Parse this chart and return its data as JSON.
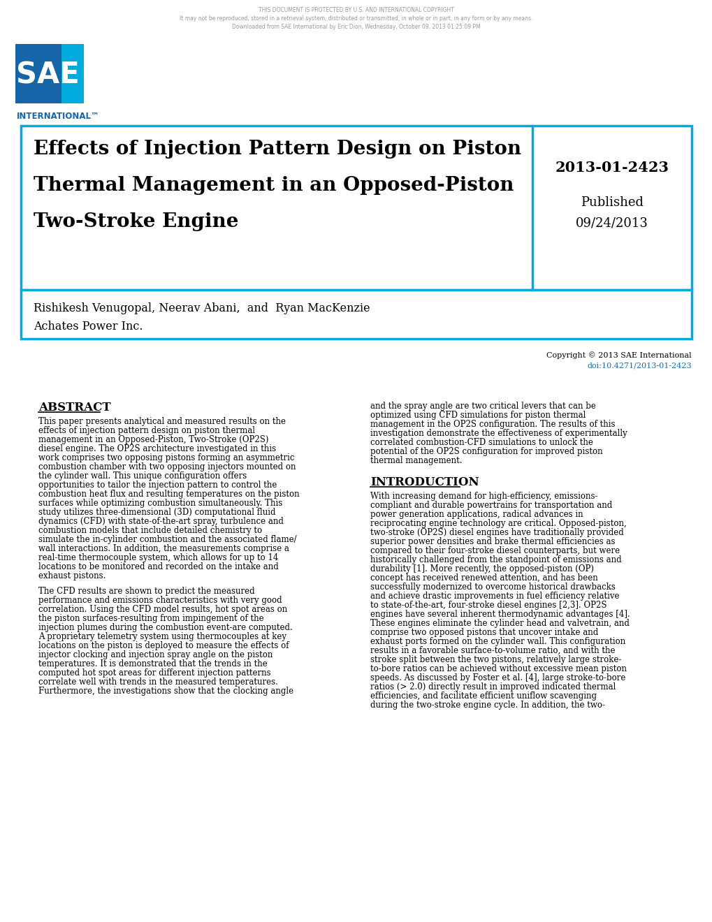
{
  "header_copyright_line1": "THIS DOCUMENT IS PROTECTED BY U.S. AND INTERNATIONAL COPYRIGHT",
  "header_copyright_line2": "It may not be reproduced, stored in a retrieval system, distributed or transmitted, in whole or in part, in any form or by any means.",
  "header_copyright_line3": "Downloaded from SAE International by Eric Dion, Wednesday, October 09, 2013 01:25:09 PM",
  "sae_international_text": "INTERNATIONAL™",
  "title_box_title_line1": "Effects of Injection Pattern Design on Piston",
  "title_box_title_line2": "Thermal Management in an Opposed-Piston",
  "title_box_title_line3": "Two-Stroke Engine",
  "paper_number": "2013-01-2423",
  "published_label": "Published",
  "published_date": "09/24/2013",
  "authors_line1": "Rishikesh Venugopal, Neerav Abani,  and  Ryan MacKenzie",
  "authors_line2": "Achates Power Inc.",
  "copyright_footer": "Copyright © 2013 SAE International",
  "doi_text": "doi:10.4271/2013-01-2423",
  "abstract_heading": "ABSTRACT",
  "abstract_para1": "This paper presents analytical and measured results on the\neffects of injection pattern design on piston thermal\nmanagement in an Opposed-Piston, Two-Stroke (OP2S)\ndiesel engine. The OP2S architecture investigated in this\nwork comprises two opposing pistons forming an asymmetric\ncombustion chamber with two opposing injectors mounted on\nthe cylinder wall. This unique configuration offers\nopportunities to tailor the injection pattern to control the\ncombustion heat flux and resulting temperatures on the piston\nsurfaces while optimizing combustion simultaneously. This\nstudy utilizes three-dimensional (3D) computational fluid\ndynamics (CFD) with state-of-the-art spray, turbulence and\ncombustion models that include detailed chemistry to\nsimulate the in-cylinder combustion and the associated flame/\nwall interactions. In addition, the measurements comprise a\nreal-time thermocouple system, which allows for up to 14\nlocations to be monitored and recorded on the intake and\nexhaust pistons.",
  "abstract_para2": "The CFD results are shown to predict the measured\nperformance and emissions characteristics with very good\ncorrelation. Using the CFD model results, hot spot areas on\nthe piston surfaces-resulting from impingement of the\ninjection plumes during the combustion event-are computed.\nA proprietary telemetry system using thermocouples at key\nlocations on the piston is deployed to measure the effects of\ninjector clocking and injection spray angle on the piston\ntemperatures. It is demonstrated that the trends in the\ncomputed hot spot areas for different injection patterns\ncorrelate well with trends in the measured temperatures.\nFurthermore, the investigations show that the clocking angle",
  "right_col_para1": "and the spray angle are two critical levers that can be\noptimized using CFD simulations for piston thermal\nmanagement in the OP2S configuration. The results of this\ninvestigation demonstrate the effectiveness of experimentally\ncorrelated combustion-CFD simulations to unlock the\npotential of the OP2S configuration for improved piston\nthermal management.",
  "intro_heading": "INTRODUCTION",
  "intro_para1": "With increasing demand for high-efficiency, emissions-\ncompliant and durable powertrains for transportation and\npower generation applications, radical advances in\nreciprocating engine technology are critical. Opposed-piston,\ntwo-stroke (OP2S) diesel engines have traditionally provided\nsuperior power densities and brake thermal efficiencies as\ncompared to their four-stroke diesel counterparts, but were\nhistorically challenged from the standpoint of emissions and\ndurability [1]. More recently, the opposed-piston (OP)\nconcept has received renewed attention, and has been\nsuccessfully modernized to overcome historical drawbacks\nand achieve drastic improvements in fuel efficiency relative\nto state-of-the-art, four-stroke diesel engines [2,3]. OP2S\nengines have several inherent thermodynamic advantages [4].\nThese engines eliminate the cylinder head and valvetrain, and\ncomprise two opposed pistons that uncover intake and\nexhaust ports formed on the cylinder wall. This configuration\nresults in a favorable surface-to-volume ratio, and with the\nstroke split between the two pistons, relatively large stroke-\nto-bore ratios can be achieved without excessive mean piston\nspeeds. As discussed by Foster et al. [4], large stroke-to-bore\nratios (> 2.0) directly result in improved indicated thermal\nefficiencies, and facilitate efficient uniflow scavenging\nduring the two-stroke engine cycle. In addition, the two-",
  "border_color": "#00AADD",
  "background_color": "#FFFFFF",
  "sae_blue_dark": "#1565A8",
  "sae_blue_light": "#00AADD",
  "doi_color": "#1B6CA8"
}
